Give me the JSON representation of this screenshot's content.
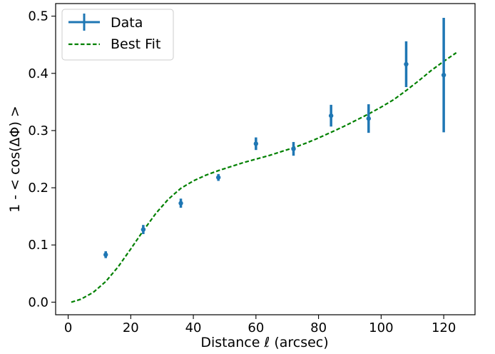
{
  "chart_data": {
    "type": "scatter",
    "title": "",
    "xlabel": "Distance ℓ (arcsec)",
    "ylabel": "1 - < cos(ΔΦ) >",
    "xlim": [
      -4,
      130
    ],
    "ylim": [
      -0.022,
      0.522
    ],
    "xticks": [
      0,
      20,
      40,
      60,
      80,
      100,
      120
    ],
    "yticks": [
      0.0,
      0.1,
      0.2,
      0.3,
      0.4,
      0.5
    ],
    "xtick_labels": [
      "0",
      "20",
      "40",
      "60",
      "80",
      "100",
      "120"
    ],
    "ytick_labels": [
      "0.0",
      "0.1",
      "0.2",
      "0.3",
      "0.4",
      "0.5"
    ],
    "grid": false,
    "legend": {
      "position": "top-left",
      "entries": [
        {
          "label": "Data",
          "marker": "errorbar",
          "color": "#1f77b4"
        },
        {
          "label": "Best Fit",
          "marker": "dashed-line",
          "color": "#008000"
        }
      ]
    },
    "series": [
      {
        "name": "Data",
        "kind": "errorbar",
        "color": "#1f77b4",
        "x": [
          12,
          24,
          36,
          48,
          60,
          72,
          84,
          96,
          108,
          120
        ],
        "y": [
          0.083,
          0.127,
          0.173,
          0.218,
          0.277,
          0.268,
          0.326,
          0.321,
          0.416,
          0.397
        ],
        "yerr": [
          0.006,
          0.008,
          0.008,
          0.006,
          0.011,
          0.012,
          0.019,
          0.025,
          0.04,
          0.1
        ]
      },
      {
        "name": "Best Fit",
        "kind": "line",
        "color": "#008000",
        "x": [
          1,
          4,
          8,
          12,
          16,
          20,
          24,
          28,
          32,
          36,
          40,
          44,
          48,
          52,
          56,
          60,
          64,
          68,
          72,
          76,
          80,
          84,
          88,
          92,
          96,
          100,
          104,
          108,
          112,
          116,
          120,
          124
        ],
        "y": [
          0.0,
          0.005,
          0.017,
          0.036,
          0.062,
          0.093,
          0.125,
          0.155,
          0.18,
          0.199,
          0.212,
          0.222,
          0.23,
          0.237,
          0.244,
          0.25,
          0.256,
          0.263,
          0.27,
          0.278,
          0.287,
          0.297,
          0.307,
          0.318,
          0.329,
          0.341,
          0.354,
          0.37,
          0.387,
          0.405,
          0.421,
          0.436
        ]
      }
    ]
  }
}
